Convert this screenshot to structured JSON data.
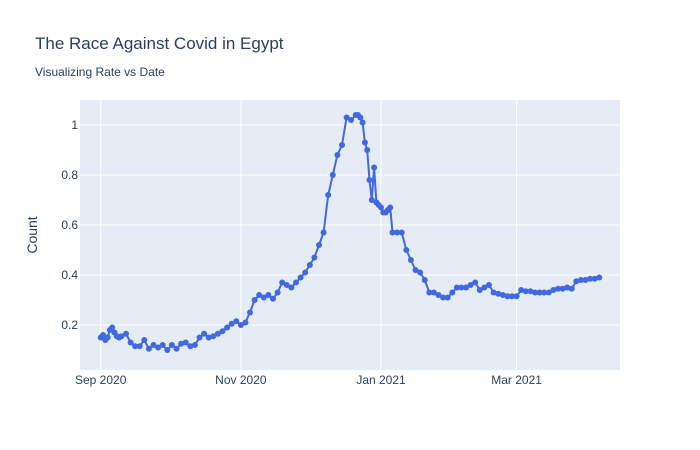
{
  "chart_data": {
    "type": "line",
    "title": "The Race Against Covid in Egypt",
    "subtitle": "Visualizing Rate vs Date",
    "xlabel": "",
    "ylabel": "Count",
    "xlim": [
      "2020-08-23",
      "2021-04-15"
    ],
    "ylim": [
      0.02,
      1.1
    ],
    "x_ticks": [
      {
        "label": "Sep 2020",
        "date": "2020-09-01"
      },
      {
        "label": "Nov 2020",
        "date": "2020-11-01"
      },
      {
        "label": "Jan 2021",
        "date": "2021-01-01"
      },
      {
        "label": "Mar 2021",
        "date": "2021-03-01"
      }
    ],
    "y_ticks": [
      0.2,
      0.4,
      0.6,
      0.8,
      1
    ],
    "grid": true,
    "colors": {
      "line": "#4169e1",
      "plot_bg": "#e5ecf6",
      "grid": "#ffffff",
      "text": "#2a3f5f"
    },
    "series": [
      {
        "name": "",
        "mode": "lines+markers",
        "x": [
          "2020-09-01",
          "2020-09-02",
          "2020-09-03",
          "2020-09-04",
          "2020-09-05",
          "2020-09-06",
          "2020-09-07",
          "2020-09-08",
          "2020-09-09",
          "2020-09-10",
          "2020-09-12",
          "2020-09-14",
          "2020-09-16",
          "2020-09-18",
          "2020-09-20",
          "2020-09-22",
          "2020-09-24",
          "2020-09-26",
          "2020-09-28",
          "2020-09-30",
          "2020-10-02",
          "2020-10-04",
          "2020-10-06",
          "2020-10-08",
          "2020-10-10",
          "2020-10-12",
          "2020-10-14",
          "2020-10-16",
          "2020-10-18",
          "2020-10-20",
          "2020-10-22",
          "2020-10-24",
          "2020-10-26",
          "2020-10-28",
          "2020-10-30",
          "2020-11-01",
          "2020-11-03",
          "2020-11-05",
          "2020-11-07",
          "2020-11-09",
          "2020-11-11",
          "2020-11-13",
          "2020-11-15",
          "2020-11-17",
          "2020-11-19",
          "2020-11-21",
          "2020-11-23",
          "2020-11-25",
          "2020-11-27",
          "2020-11-29",
          "2020-12-01",
          "2020-12-03",
          "2020-12-05",
          "2020-12-07",
          "2020-12-09",
          "2020-12-11",
          "2020-12-13",
          "2020-12-15",
          "2020-12-17",
          "2020-12-19",
          "2020-12-21",
          "2020-12-22",
          "2020-12-23",
          "2020-12-24",
          "2020-12-25",
          "2020-12-26",
          "2020-12-27",
          "2020-12-28",
          "2020-12-29",
          "2020-12-30",
          "2020-12-31",
          "2021-01-01",
          "2021-01-02",
          "2021-01-03",
          "2021-01-04",
          "2021-01-05",
          "2021-01-06",
          "2021-01-08",
          "2021-01-10",
          "2021-01-12",
          "2021-01-14",
          "2021-01-16",
          "2021-01-18",
          "2021-01-20",
          "2021-01-22",
          "2021-01-24",
          "2021-01-26",
          "2021-01-28",
          "2021-01-30",
          "2021-02-01",
          "2021-02-03",
          "2021-02-05",
          "2021-02-07",
          "2021-02-09",
          "2021-02-11",
          "2021-02-13",
          "2021-02-15",
          "2021-02-17",
          "2021-02-19",
          "2021-02-21",
          "2021-02-23",
          "2021-02-25",
          "2021-02-27",
          "2021-03-01",
          "2021-03-03",
          "2021-03-05",
          "2021-03-07",
          "2021-03-09",
          "2021-03-11",
          "2021-03-13",
          "2021-03-15",
          "2021-03-17",
          "2021-03-19",
          "2021-03-21",
          "2021-03-23",
          "2021-03-25",
          "2021-03-27",
          "2021-03-29",
          "2021-03-31",
          "2021-04-02",
          "2021-04-04",
          "2021-04-06"
        ],
        "y": [
          0.15,
          0.16,
          0.14,
          0.15,
          0.18,
          0.19,
          0.17,
          0.155,
          0.15,
          0.155,
          0.165,
          0.13,
          0.115,
          0.115,
          0.14,
          0.105,
          0.12,
          0.11,
          0.12,
          0.1,
          0.12,
          0.105,
          0.125,
          0.13,
          0.115,
          0.12,
          0.15,
          0.165,
          0.15,
          0.155,
          0.165,
          0.175,
          0.19,
          0.205,
          0.215,
          0.2,
          0.21,
          0.25,
          0.3,
          0.32,
          0.31,
          0.32,
          0.305,
          0.33,
          0.37,
          0.36,
          0.35,
          0.37,
          0.39,
          0.41,
          0.44,
          0.47,
          0.52,
          0.57,
          0.72,
          0.8,
          0.88,
          0.92,
          1.03,
          1.02,
          1.04,
          1.04,
          1.03,
          1.01,
          0.93,
          0.9,
          0.78,
          0.7,
          0.83,
          0.69,
          0.68,
          0.67,
          0.65,
          0.65,
          0.66,
          0.67,
          0.57,
          0.57,
          0.57,
          0.5,
          0.46,
          0.42,
          0.41,
          0.38,
          0.33,
          0.33,
          0.32,
          0.31,
          0.31,
          0.33,
          0.35,
          0.35,
          0.35,
          0.36,
          0.37,
          0.34,
          0.35,
          0.36,
          0.33,
          0.325,
          0.32,
          0.315,
          0.315,
          0.315,
          0.34,
          0.335,
          0.335,
          0.33,
          0.33,
          0.33,
          0.33,
          0.34,
          0.345,
          0.345,
          0.35,
          0.345,
          0.375,
          0.38,
          0.38,
          0.385,
          0.385,
          0.39
        ]
      }
    ]
  }
}
